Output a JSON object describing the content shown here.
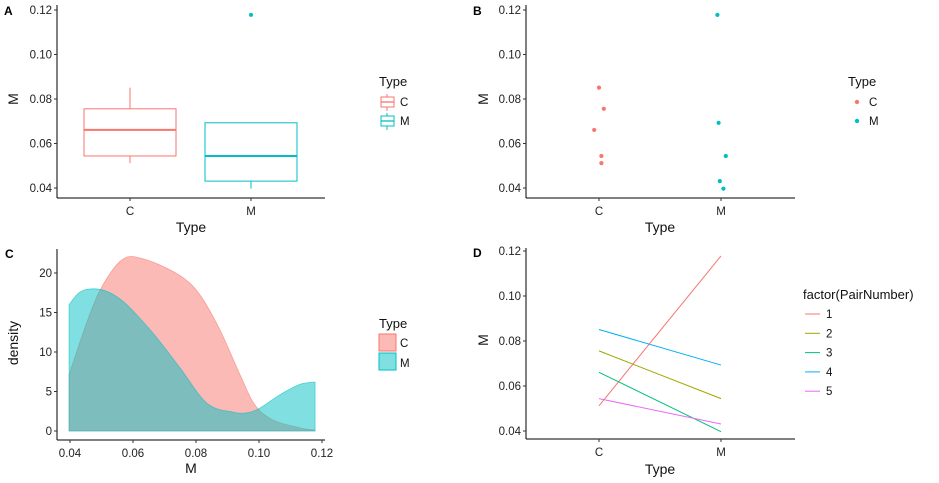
{
  "colors": {
    "C": "#F8766D",
    "M": "#00BFC4",
    "pair_1": "#F8766D",
    "pair_2": "#A3A500",
    "pair_3": "#00BF7D",
    "pair_4": "#00B0F6",
    "pair_5": "#E76BF3",
    "density_C_fill": "#F8766D",
    "density_M_fill": "#00BFC4"
  },
  "chart_data": [
    {
      "panel": "A",
      "type": "boxplot",
      "xlabel": "Type",
      "ylabel": "M",
      "categories": [
        "C",
        "M"
      ],
      "ylim": [
        0.0355,
        0.1205
      ],
      "yticks": [
        "0.04",
        "0.06",
        "0.08",
        "0.10",
        "0.12"
      ],
      "ytick_values": [
        0.04,
        0.06,
        0.08,
        0.1,
        0.12
      ],
      "boxes": [
        {
          "category": "C",
          "whisker_low": 0.0512,
          "q1": 0.0544,
          "median": 0.0661,
          "q3": 0.0756,
          "whisker_high": 0.0851,
          "outliers": []
        },
        {
          "category": "M",
          "whisker_low": 0.0397,
          "q1": 0.0431,
          "median": 0.0544,
          "q3": 0.0693,
          "whisker_high": 0.0693,
          "outliers": [
            0.1178
          ]
        }
      ],
      "legend": {
        "title": "Type",
        "entries": [
          "C",
          "M"
        ],
        "placement": "right"
      }
    },
    {
      "panel": "B",
      "type": "scatter",
      "xlabel": "Type",
      "ylabel": "M",
      "categories": [
        "C",
        "M"
      ],
      "ylim": [
        0.0355,
        0.1205
      ],
      "yticks": [
        "0.04",
        "0.06",
        "0.08",
        "0.10",
        "0.12"
      ],
      "ytick_values": [
        0.04,
        0.06,
        0.08,
        0.1,
        0.12
      ],
      "series": [
        {
          "name": "C",
          "points": [
            {
              "jitter": 0.0,
              "y": 0.0851
            },
            {
              "jitter": 0.04,
              "y": 0.0756
            },
            {
              "jitter": -0.04,
              "y": 0.0661
            },
            {
              "jitter": 0.02,
              "y": 0.0544
            },
            {
              "jitter": 0.02,
              "y": 0.0512
            }
          ]
        },
        {
          "name": "M",
          "points": [
            {
              "jitter": -0.03,
              "y": 0.1178
            },
            {
              "jitter": -0.02,
              "y": 0.0693
            },
            {
              "jitter": 0.04,
              "y": 0.0544
            },
            {
              "jitter": -0.01,
              "y": 0.0431
            },
            {
              "jitter": 0.02,
              "y": 0.0397
            }
          ]
        }
      ],
      "legend": {
        "title": "Type",
        "entries": [
          "C",
          "M"
        ],
        "placement": "right"
      }
    },
    {
      "panel": "C",
      "type": "area",
      "xlabel": "M",
      "ylabel": "density",
      "xlim": [
        0.0355,
        0.1215
      ],
      "ylim": [
        -1.1,
        23.2
      ],
      "xticks": [
        "0.04",
        "0.06",
        "0.08",
        "0.10",
        "0.12"
      ],
      "xtick_values": [
        0.04,
        0.06,
        0.08,
        0.1,
        0.12
      ],
      "yticks": [
        "0",
        "5",
        "10",
        "15",
        "20"
      ],
      "ytick_values": [
        0,
        5,
        10,
        15,
        20
      ],
      "series": [
        {
          "name": "C",
          "x": [
            0.0397,
            0.0432,
            0.0465,
            0.0495,
            0.0543,
            0.058,
            0.0622,
            0.0686,
            0.0759,
            0.0813,
            0.0876,
            0.094,
            0.0987,
            0.1044,
            0.113,
            0.1178
          ],
          "y": [
            7.1,
            11.3,
            15.0,
            17.8,
            20.8,
            22.0,
            21.9,
            21.0,
            19.4,
            17.2,
            12.8,
            7.1,
            3.3,
            1.4,
            0.4,
            0.1
          ]
        },
        {
          "name": "M",
          "x": [
            0.0397,
            0.0432,
            0.0479,
            0.0527,
            0.058,
            0.0663,
            0.0749,
            0.0835,
            0.0917,
            0.0962,
            0.1003,
            0.1067,
            0.113,
            0.1178
          ],
          "y": [
            16.0,
            17.6,
            18.0,
            17.5,
            16.0,
            12.4,
            8.0,
            3.5,
            2.4,
            2.3,
            2.9,
            4.6,
            5.9,
            6.2
          ]
        }
      ],
      "legend": {
        "title": "Type",
        "entries": [
          "C",
          "M"
        ],
        "placement": "right"
      }
    },
    {
      "panel": "D",
      "type": "line",
      "xlabel": "Type",
      "ylabel": "M",
      "categories": [
        "C",
        "M"
      ],
      "ylim": [
        0.0355,
        0.1205
      ],
      "yticks": [
        "0.04",
        "0.06",
        "0.08",
        "0.10",
        "0.12"
      ],
      "ytick_values": [
        0.04,
        0.06,
        0.08,
        0.1,
        0.12
      ],
      "series": [
        {
          "name": "1",
          "values": [
            0.0512,
            0.1178
          ]
        },
        {
          "name": "2",
          "values": [
            0.0756,
            0.0544
          ]
        },
        {
          "name": "3",
          "values": [
            0.0661,
            0.0397
          ]
        },
        {
          "name": "4",
          "values": [
            0.0851,
            0.0693
          ]
        },
        {
          "name": "5",
          "values": [
            0.0544,
            0.0431
          ]
        }
      ],
      "legend": {
        "title": "factor(PairNumber)",
        "entries": [
          "1",
          "2",
          "3",
          "4",
          "5"
        ],
        "placement": "right"
      }
    }
  ]
}
